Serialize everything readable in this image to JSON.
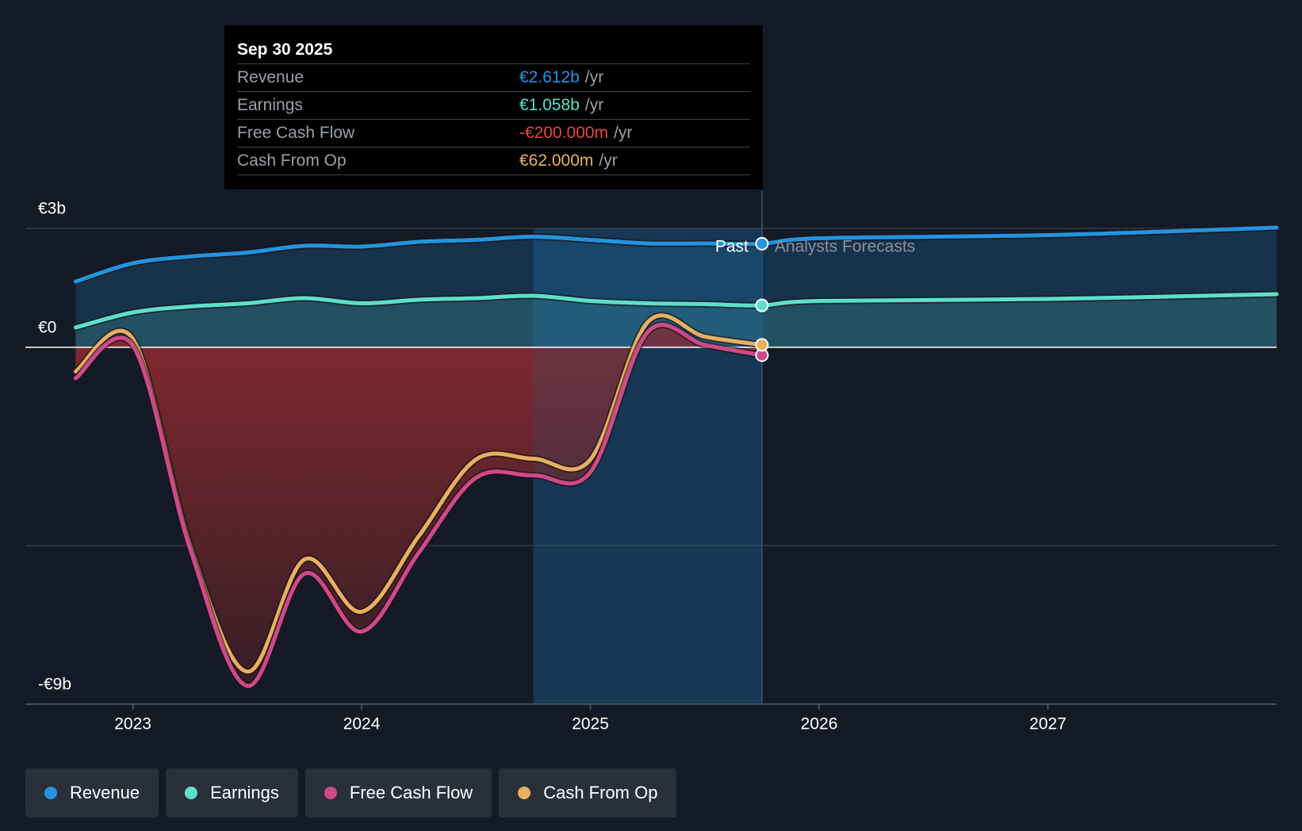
{
  "chart_data": {
    "type": "line",
    "x": [
      2022.75,
      2023.0,
      2023.25,
      2023.5,
      2023.75,
      2024.0,
      2024.25,
      2024.5,
      2024.75,
      2025.0,
      2025.25,
      2025.5,
      2025.75,
      2026.0,
      2027.0,
      2028.0
    ],
    "series": [
      {
        "name": "Revenue",
        "color": "#2394df",
        "values": [
          1.66,
          2.12,
          2.29,
          2.39,
          2.56,
          2.54,
          2.66,
          2.71,
          2.79,
          2.71,
          2.62,
          2.62,
          2.612,
          2.75,
          2.83,
          3.02
        ]
      },
      {
        "name": "Earnings",
        "color": "#5ce0cc",
        "values": [
          0.5,
          0.88,
          1.03,
          1.11,
          1.24,
          1.11,
          1.2,
          1.24,
          1.3,
          1.17,
          1.11,
          1.09,
          1.058,
          1.17,
          1.22,
          1.34
        ]
      },
      {
        "name": "Free Cash Flow",
        "color": "#d0498a",
        "values": [
          -0.78,
          0.04,
          -5.08,
          -8.54,
          -5.71,
          -7.17,
          -5.18,
          -3.29,
          -3.23,
          -3.15,
          0.38,
          0.06,
          -0.2,
          null,
          null,
          null
        ]
      },
      {
        "name": "Cash From Op",
        "color": "#e9b060",
        "values": [
          -0.61,
          0.21,
          -4.97,
          -8.18,
          -5.35,
          -6.67,
          -4.76,
          -2.83,
          -2.81,
          -2.83,
          0.63,
          0.27,
          0.062,
          null,
          null,
          null
        ]
      }
    ],
    "xlim": [
      2022.53,
      2028.0
    ],
    "xticks": [
      2023,
      2024,
      2025,
      2026,
      2027
    ],
    "ylim": [
      -9,
      3
    ],
    "yticks": [
      {
        "value": 3,
        "label": "€3b"
      },
      {
        "value": 0,
        "label": "€0"
      },
      {
        "value": -9,
        "label": "-€9b"
      }
    ],
    "ygrid": [
      3,
      -5
    ],
    "highlight_from": 2024.75,
    "forecast_start": 2025.75,
    "past_label": "Past",
    "forecast_label": "Analysts Forecasts",
    "tooltip": {
      "date": "Sep 30 2025",
      "rows": [
        {
          "label": "Revenue",
          "value": "€2.612b",
          "unit": "/yr"
        },
        {
          "label": "Earnings",
          "value": "€1.058b",
          "unit": "/yr"
        },
        {
          "label": "Free Cash Flow",
          "value": "-€200.000m",
          "unit": "/yr"
        },
        {
          "label": "Cash From Op",
          "value": "€62.000m",
          "unit": "/yr"
        }
      ]
    }
  }
}
